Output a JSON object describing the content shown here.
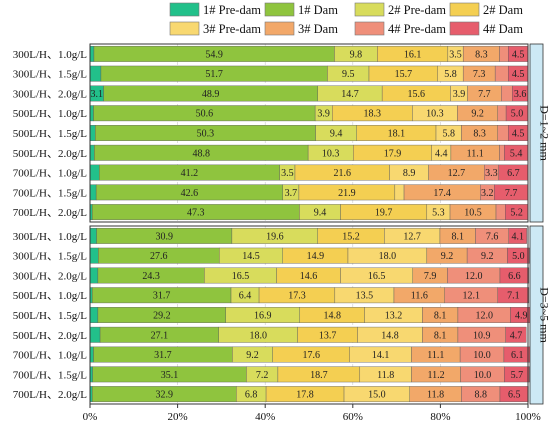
{
  "chart_data": {
    "type": "bar",
    "orientation": "horizontal-stacked",
    "xlim": [
      0,
      100
    ],
    "xticks": [
      "0%",
      "20%",
      "40%",
      "60%",
      "80%",
      "100%"
    ],
    "legend_placement": "top",
    "series": [
      {
        "name": "1# Pre-dam",
        "color": "#22c08a"
      },
      {
        "name": "1# Dam",
        "color": "#8fc43e"
      },
      {
        "name": "2# Pre-dam",
        "color": "#d8dc5c"
      },
      {
        "name": "2# Dam",
        "color": "#f4cf52"
      },
      {
        "name": "3# Pre-dam",
        "color": "#f8d870"
      },
      {
        "name": "3# Dam",
        "color": "#f2a869"
      },
      {
        "name": "4# Pre-dam",
        "color": "#ef8f7a"
      },
      {
        "name": "4# Dam",
        "color": "#e65d6c"
      }
    ],
    "groups": [
      {
        "label": "D=1~2 mm",
        "rows": [
          {
            "category": "300L/H、1.0g/L",
            "values": [
              0.9,
              54.9,
              9.8,
              16.1,
              3.5,
              8.3,
              2.0,
              4.5
            ],
            "labels": [
              "",
              "54.9",
              "9.8",
              "16.1",
              "3.5",
              "8.3",
              "",
              "4.5"
            ]
          },
          {
            "category": "300L/H、1.5g/L",
            "values": [
              2.5,
              51.7,
              9.5,
              15.7,
              5.8,
              7.3,
              3.0,
              4.5
            ],
            "labels": [
              "",
              "51.7",
              "9.5",
              "15.7",
              "5.8",
              "7.3",
              "",
              "4.5"
            ]
          },
          {
            "category": "300L/H、2.0g/L",
            "values": [
              3.1,
              48.9,
              14.7,
              15.6,
              3.9,
              7.7,
              2.5,
              3.6
            ],
            "labels": [
              "3.1",
              "48.9",
              "14.7",
              "15.6",
              "3.9",
              "7.7",
              "",
              "3.6"
            ]
          },
          {
            "category": "500L/H、1.0g/L",
            "values": [
              0.8,
              50.6,
              3.9,
              18.3,
              10.3,
              9.2,
              1.9,
              5.0
            ],
            "labels": [
              "",
              "50.6",
              "3.9",
              "18.3",
              "10.3",
              "9.2",
              "",
              "5.0"
            ]
          },
          {
            "category": "500L/H、1.5g/L",
            "values": [
              1.2,
              50.3,
              9.4,
              18.1,
              5.8,
              8.3,
              2.4,
              4.5
            ],
            "labels": [
              "",
              "50.3",
              "9.4",
              "18.1",
              "5.8",
              "8.3",
              "",
              "4.5"
            ]
          },
          {
            "category": "500L/H、2.0g/L",
            "values": [
              1.0,
              48.8,
              10.3,
              17.9,
              4.4,
              11.1,
              1.1,
              5.4
            ],
            "labels": [
              "",
              "48.8",
              "10.3",
              "17.9",
              "4.4",
              "11.1",
              "",
              "5.4"
            ]
          },
          {
            "category": "700L/H、1.0g/L",
            "values": [
              2.1,
              41.2,
              3.5,
              21.6,
              8.9,
              12.7,
              3.3,
              6.7
            ],
            "labels": [
              "",
              "41.2",
              "3.5",
              "21.6",
              "8.9",
              "12.7",
              "3.3",
              "6.7"
            ]
          },
          {
            "category": "700L/H、1.5g/L",
            "values": [
              1.4,
              42.6,
              3.7,
              21.9,
              2.1,
              17.4,
              3.2,
              7.7
            ],
            "labels": [
              "",
              "42.6",
              "3.7",
              "21.9",
              "",
              "17.4",
              "3.2",
              "7.7"
            ]
          },
          {
            "category": "700L/H、2.0g/L",
            "values": [
              0.5,
              47.3,
              9.4,
              19.7,
              5.3,
              10.5,
              2.1,
              5.2
            ],
            "labels": [
              "",
              "47.3",
              "9.4",
              "19.7",
              "5.3",
              "10.5",
              "",
              "5.2"
            ]
          }
        ]
      },
      {
        "label": "D=3~5 mm",
        "rows": [
          {
            "category": "300L/H、1.0g/L",
            "values": [
              1.5,
              30.9,
              19.6,
              15.2,
              12.7,
              8.1,
              7.6,
              4.1
            ],
            "labels": [
              "",
              "30.9",
              "19.6",
              "15.2",
              "12.7",
              "8.1",
              "7.6",
              "4.1"
            ]
          },
          {
            "category": "300L/H、1.5g/L",
            "values": [
              1.9,
              27.6,
              14.5,
              14.9,
              18.0,
              9.2,
              9.2,
              5.0
            ],
            "labels": [
              "",
              "27.6",
              "14.5",
              "14.9",
              "18.0",
              "9.2",
              "9.2",
              "5.0"
            ]
          },
          {
            "category": "300L/H、2.0g/L",
            "values": [
              1.8,
              24.3,
              16.5,
              14.6,
              16.5,
              7.9,
              12.0,
              6.6
            ],
            "labels": [
              "",
              "24.3",
              "16.5",
              "14.6",
              "16.5",
              "7.9",
              "12.0",
              "6.6"
            ]
          },
          {
            "category": "500L/H、1.0g/L",
            "values": [
              0.5,
              31.7,
              6.4,
              17.3,
              13.5,
              11.6,
              12.1,
              7.1
            ],
            "labels": [
              "",
              "31.7",
              "6.4",
              "17.3",
              "13.5",
              "11.6",
              "12.1",
              "7.1"
            ]
          },
          {
            "category": "500L/H、1.5g/L",
            "values": [
              1.8,
              29.2,
              16.9,
              14.8,
              13.2,
              8.1,
              12.0,
              4.9
            ],
            "labels": [
              "",
              "29.2",
              "16.9",
              "14.8",
              "13.2",
              "8.1",
              "12.0",
              "4.9"
            ]
          },
          {
            "category": "500L/H、2.0g/L",
            "values": [
              2.3,
              27.1,
              18.0,
              13.7,
              14.8,
              8.1,
              10.9,
              4.7
            ],
            "labels": [
              "",
              "27.1",
              "18.0",
              "13.7",
              "14.8",
              "8.1",
              "10.9",
              "4.7"
            ]
          },
          {
            "category": "700L/H、1.0g/L",
            "values": [
              0.8,
              31.7,
              9.2,
              17.6,
              14.1,
              11.1,
              10.0,
              6.1
            ],
            "labels": [
              "",
              "31.7",
              "9.2",
              "17.6",
              "14.1",
              "11.1",
              "10.0",
              "6.1"
            ]
          },
          {
            "category": "700L/H、1.5g/L",
            "values": [
              0.6,
              35.1,
              7.2,
              18.7,
              11.8,
              11.2,
              10.0,
              5.7
            ],
            "labels": [
              "",
              "35.1",
              "7.2",
              "18.7",
              "11.8",
              "11.2",
              "10.0",
              "5.7"
            ]
          },
          {
            "category": "700L/H、2.0g/L",
            "values": [
              0.5,
              32.9,
              6.8,
              17.8,
              15.0,
              11.8,
              8.8,
              6.5
            ],
            "labels": [
              "",
              "32.9",
              "6.8",
              "17.8",
              "15.0",
              "11.8",
              "8.8",
              "6.5"
            ]
          }
        ]
      }
    ]
  }
}
